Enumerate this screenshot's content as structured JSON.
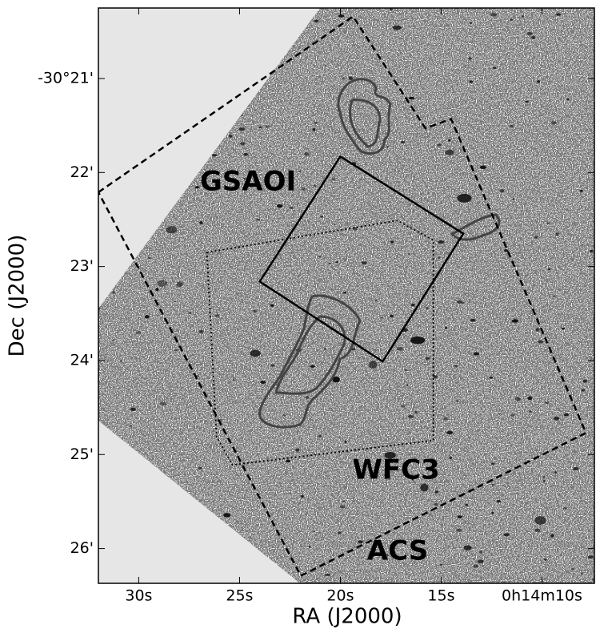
{
  "chart_data": {
    "type": "sky-footprints",
    "xlabel": "RA (J2000)",
    "ylabel": "Dec (J2000)",
    "xlim": [
      32.0,
      7.4
    ],
    "ylim": [
      -26.37,
      -20.25
    ],
    "xticks": [
      {
        "value": 30,
        "label": "30s"
      },
      {
        "value": 25,
        "label": "25s"
      },
      {
        "value": 20,
        "label": "20s"
      },
      {
        "value": 15,
        "label": "15s"
      },
      {
        "value": 10,
        "label": "0h14m10s"
      }
    ],
    "yticks": [
      {
        "value": -21,
        "label": "-30°21'"
      },
      {
        "value": -22,
        "label": "22'"
      },
      {
        "value": -23,
        "label": "23'"
      },
      {
        "value": -24,
        "label": "24'"
      },
      {
        "value": -25,
        "label": "25'"
      },
      {
        "value": -26,
        "label": "26'"
      }
    ],
    "footprints": [
      {
        "name": "GSAOI",
        "style": "solid",
        "x": [
          20.0,
          13.9,
          17.9,
          24.0
        ],
        "y": [
          -21.83,
          -22.65,
          -24.01,
          -23.16
        ]
      },
      {
        "name": "WFC3",
        "style": "dotted",
        "x": [
          26.62,
          17.18,
          15.39,
          15.39,
          25.35,
          26.14
        ],
        "y": [
          -22.85,
          -22.51,
          -22.72,
          -24.85,
          -25.11,
          -24.81
        ]
      },
      {
        "name": "ACS",
        "style": "dashed",
        "x": [
          32.0,
          19.37,
          15.78,
          14.51,
          7.82,
          21.96
        ],
        "y": [
          -22.21,
          -20.34,
          -21.53,
          -21.43,
          -24.77,
          -26.29
        ]
      }
    ]
  }
}
